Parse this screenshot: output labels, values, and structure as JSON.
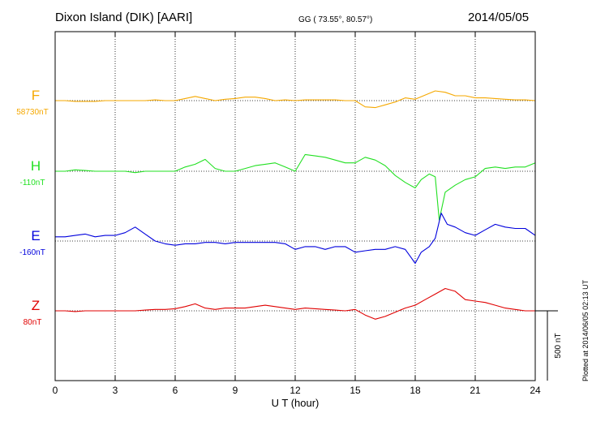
{
  "header": {
    "station": "Dixon Island (DIK)  [AARI]",
    "coords": "GG ( 73.55°,  80.57°)",
    "date": "2014/05/05"
  },
  "plotted_note": "Plotted at 2014/06/05 02:13 UT",
  "scale_label": "500 nT",
  "colors": {
    "F": "#f5a800",
    "H": "#22e022",
    "E": "#0000dd",
    "Z": "#e00000",
    "grid": "#000000"
  },
  "chart_data": {
    "type": "line",
    "xlabel": "U T (hour)",
    "xlim": [
      0,
      24
    ],
    "xticks": [
      "0",
      "3",
      "6",
      "9",
      "12",
      "15",
      "18",
      "21",
      "24"
    ],
    "scale_bar_nT": 500,
    "series": [
      {
        "name": "F",
        "baseline_label": "58730nT",
        "x": [
          0,
          0.5,
          1,
          1.5,
          2,
          2.5,
          3,
          3.5,
          4,
          4.5,
          5,
          5.5,
          6,
          6.5,
          7,
          7.5,
          8,
          8.5,
          9,
          9.5,
          10,
          10.5,
          11,
          11.5,
          12,
          12.5,
          13,
          13.5,
          14,
          14.5,
          15,
          15.5,
          16,
          16.5,
          17,
          17.5,
          18,
          18.5,
          19,
          19.5,
          20,
          20.5,
          21,
          21.5,
          22,
          22.5,
          23,
          23.5,
          24
        ],
        "y": [
          0,
          0,
          -5,
          -5,
          -5,
          0,
          0,
          0,
          0,
          0,
          5,
          0,
          0,
          15,
          30,
          15,
          0,
          10,
          15,
          25,
          25,
          15,
          0,
          5,
          0,
          5,
          5,
          5,
          5,
          0,
          0,
          -45,
          -50,
          -30,
          -10,
          20,
          10,
          40,
          70,
          60,
          35,
          35,
          20,
          20,
          15,
          10,
          5,
          5,
          0
        ]
      },
      {
        "name": "H",
        "baseline_label": "-110nT",
        "x": [
          0,
          0.5,
          1,
          1.5,
          2,
          2.5,
          3,
          3.5,
          4,
          4.5,
          5,
          5.5,
          6,
          6.5,
          7,
          7.5,
          8,
          8.5,
          9,
          9.5,
          10,
          10.5,
          11,
          11.5,
          12,
          12.5,
          13,
          13.5,
          14,
          14.5,
          15,
          15.5,
          16,
          16.5,
          17,
          17.5,
          18,
          18.3,
          18.7,
          19,
          19.2,
          19.5,
          20,
          20.5,
          21,
          21.5,
          22,
          22.5,
          23,
          23.5,
          24
        ],
        "y": [
          0,
          0,
          10,
          5,
          0,
          0,
          0,
          0,
          -10,
          0,
          0,
          0,
          0,
          30,
          50,
          85,
          20,
          0,
          0,
          20,
          40,
          50,
          60,
          30,
          0,
          120,
          110,
          100,
          80,
          60,
          60,
          100,
          80,
          40,
          -30,
          -80,
          -120,
          -60,
          -20,
          -40,
          -350,
          -150,
          -100,
          -60,
          -40,
          20,
          30,
          20,
          30,
          30,
          60
        ]
      },
      {
        "name": "E",
        "baseline_label": "-160nT",
        "x": [
          0,
          0.5,
          1,
          1.5,
          2,
          2.5,
          3,
          3.5,
          4,
          4.5,
          5,
          5.5,
          6,
          6.5,
          7,
          7.5,
          8,
          8.5,
          9,
          9.5,
          10,
          10.5,
          11,
          11.5,
          12,
          12.5,
          13,
          13.5,
          14,
          14.5,
          15,
          15.5,
          16,
          16.5,
          17,
          17.5,
          17.8,
          18,
          18.3,
          18.7,
          19,
          19.3,
          19.6,
          20,
          20.5,
          21,
          21.5,
          22,
          22.5,
          23,
          23.5,
          24
        ],
        "y": [
          30,
          30,
          40,
          50,
          30,
          40,
          40,
          60,
          100,
          50,
          0,
          -20,
          -30,
          -20,
          -20,
          -10,
          -10,
          -20,
          -10,
          -10,
          -10,
          -10,
          -10,
          -20,
          -60,
          -40,
          -40,
          -60,
          -40,
          -40,
          -80,
          -70,
          -60,
          -60,
          -40,
          -60,
          -120,
          -160,
          -80,
          -40,
          20,
          200,
          120,
          100,
          60,
          40,
          80,
          120,
          100,
          90,
          90,
          40
        ]
      },
      {
        "name": "Z",
        "baseline_label": "80nT",
        "x": [
          0,
          0.5,
          1,
          1.5,
          2,
          2.5,
          3,
          3.5,
          4,
          4.5,
          5,
          5.5,
          6,
          6.5,
          7,
          7.5,
          8,
          8.5,
          9,
          9.5,
          10,
          10.5,
          11,
          11.5,
          12,
          12.5,
          13,
          13.5,
          14,
          14.5,
          15,
          15.5,
          16,
          16.5,
          17,
          17.5,
          18,
          18.5,
          19,
          19.5,
          20,
          20.5,
          21,
          21.5,
          22,
          22.5,
          23,
          23.5,
          24
        ],
        "y": [
          0,
          0,
          -5,
          0,
          0,
          0,
          0,
          0,
          0,
          5,
          10,
          10,
          15,
          30,
          50,
          20,
          10,
          20,
          20,
          20,
          30,
          40,
          30,
          20,
          10,
          20,
          15,
          10,
          5,
          0,
          10,
          -30,
          -60,
          -40,
          -10,
          20,
          40,
          80,
          120,
          160,
          140,
          80,
          70,
          60,
          40,
          20,
          10,
          0,
          0
        ]
      }
    ]
  }
}
